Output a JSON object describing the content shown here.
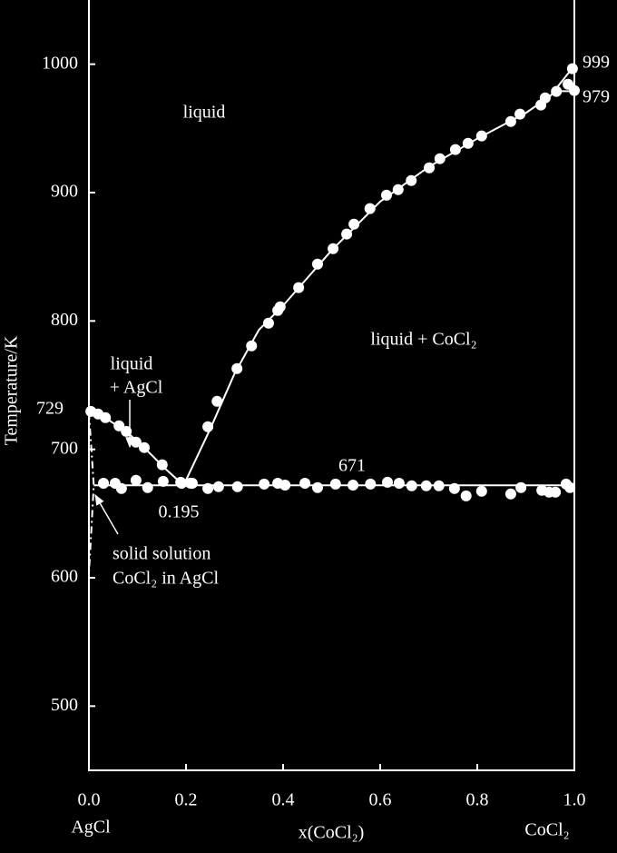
{
  "chart_data": {
    "type": "phase",
    "y_label": "Temperature/K",
    "x_label": "x(CoCl₂)",
    "xlim": [
      0,
      1
    ],
    "ylim": [
      450,
      1050
    ],
    "xticks": [
      {
        "value": 0,
        "label": "0.0"
      },
      0.2,
      0.4,
      0.6,
      0.8,
      {
        "value": 1,
        "label": "1.0"
      }
    ],
    "yticks": [
      500,
      600,
      700,
      800,
      900,
      1000
    ],
    "end_labels": [
      "AgCl",
      "CoCl₂"
    ],
    "annotations": [
      {
        "text": "liquid"
      },
      {
        "text": "liquid + CoCl₂"
      },
      {
        "text": "liquid"
      },
      {
        "text": "+ AgCl"
      },
      {
        "text": "729"
      },
      {
        "text": "671"
      },
      {
        "text": "0.195"
      },
      {
        "text": "999"
      },
      {
        "text": "979"
      },
      {
        "text": "solid solution"
      },
      {
        "text": "CoCl₂ in AgCl"
      }
    ],
    "series": [
      {
        "color": "#ffffff",
        "style": "points",
        "x": [
          0.004,
          0.019,
          0.034,
          0.062,
          0.077,
          0.097,
          0.114,
          0.151,
          0.189,
          0.209,
          0.245,
          0.264,
          0.305,
          0.335,
          0.37,
          0.389,
          0.394,
          0.432,
          0.471,
          0.503,
          0.531,
          0.546,
          0.579,
          0.613,
          0.637,
          0.664,
          0.701,
          0.723,
          0.755,
          0.781,
          0.809,
          0.869,
          0.888,
          0.931,
          0.94,
          0.963,
          0.987,
          0.996,
          1.0,
          0.03,
          0.054,
          0.067,
          0.097,
          0.121,
          0.153,
          0.191,
          0.213,
          0.245,
          0.267,
          0.306,
          0.361,
          0.389,
          0.404,
          0.445,
          0.471,
          0.508,
          0.544,
          0.58,
          0.615,
          0.639,
          0.665,
          0.695,
          0.721,
          0.753,
          0.777,
          0.809,
          0.869,
          0.89,
          0.933,
          0.948,
          0.961,
          0.983,
          0.991
        ],
        "values": [
          729.6,
          727.5,
          724.7,
          718.3,
          714,
          705.6,
          701.4,
          688,
          674.4,
          673.7,
          717.6,
          737.4,
          762.9,
          780.6,
          798.3,
          808.2,
          811,
          826,
          844.3,
          856.3,
          867.7,
          875.4,
          887.5,
          898,
          902.3,
          909.4,
          919.3,
          926.4,
          933.5,
          938.4,
          944.1,
          955.4,
          961.1,
          968.2,
          973.8,
          978.8,
          984.4,
          996.5,
          979.5,
          673.6,
          673.6,
          669.5,
          675.9,
          670.2,
          675.1,
          673.6,
          673.6,
          669.5,
          670.9,
          670.9,
          673,
          673.6,
          672.2,
          673.6,
          670.2,
          673,
          672.2,
          673,
          674.4,
          673.6,
          671.6,
          671.6,
          671.6,
          669.5,
          663.8,
          667.4,
          665.3,
          670.2,
          668.1,
          666.7,
          666.7,
          673,
          670.2
        ]
      },
      {
        "color": "#ffffff",
        "style": "solid",
        "x": [
          0,
          0.04,
          0.08,
          0.12,
          0.16,
          0.195
        ],
        "values": [
          729,
          723,
          713,
          699,
          684,
          672
        ]
      },
      {
        "color": "#ffffff",
        "style": "solid",
        "x": [
          0.195,
          0.25,
          0.3,
          0.35,
          0.4,
          0.5,
          0.6,
          0.7,
          0.8,
          0.9,
          0.95,
          1.0
        ],
        "values": [
          672,
          716,
          759,
          793,
          812,
          855,
          893,
          920,
          942,
          962,
          975,
          999
        ]
      },
      {
        "color": "#ffffff",
        "style": "solid",
        "x": [
          0.96,
          1.0
        ],
        "values": [
          979,
          979
        ]
      },
      {
        "color": "#ffffff",
        "style": "solid",
        "x": [
          0.01,
          1.0
        ],
        "values": [
          672,
          672
        ]
      },
      {
        "color": "#ffffff",
        "style": "dashdot",
        "x": [
          0,
          0.01,
          0
        ],
        "values": [
          729,
          672,
          603
        ]
      }
    ]
  }
}
